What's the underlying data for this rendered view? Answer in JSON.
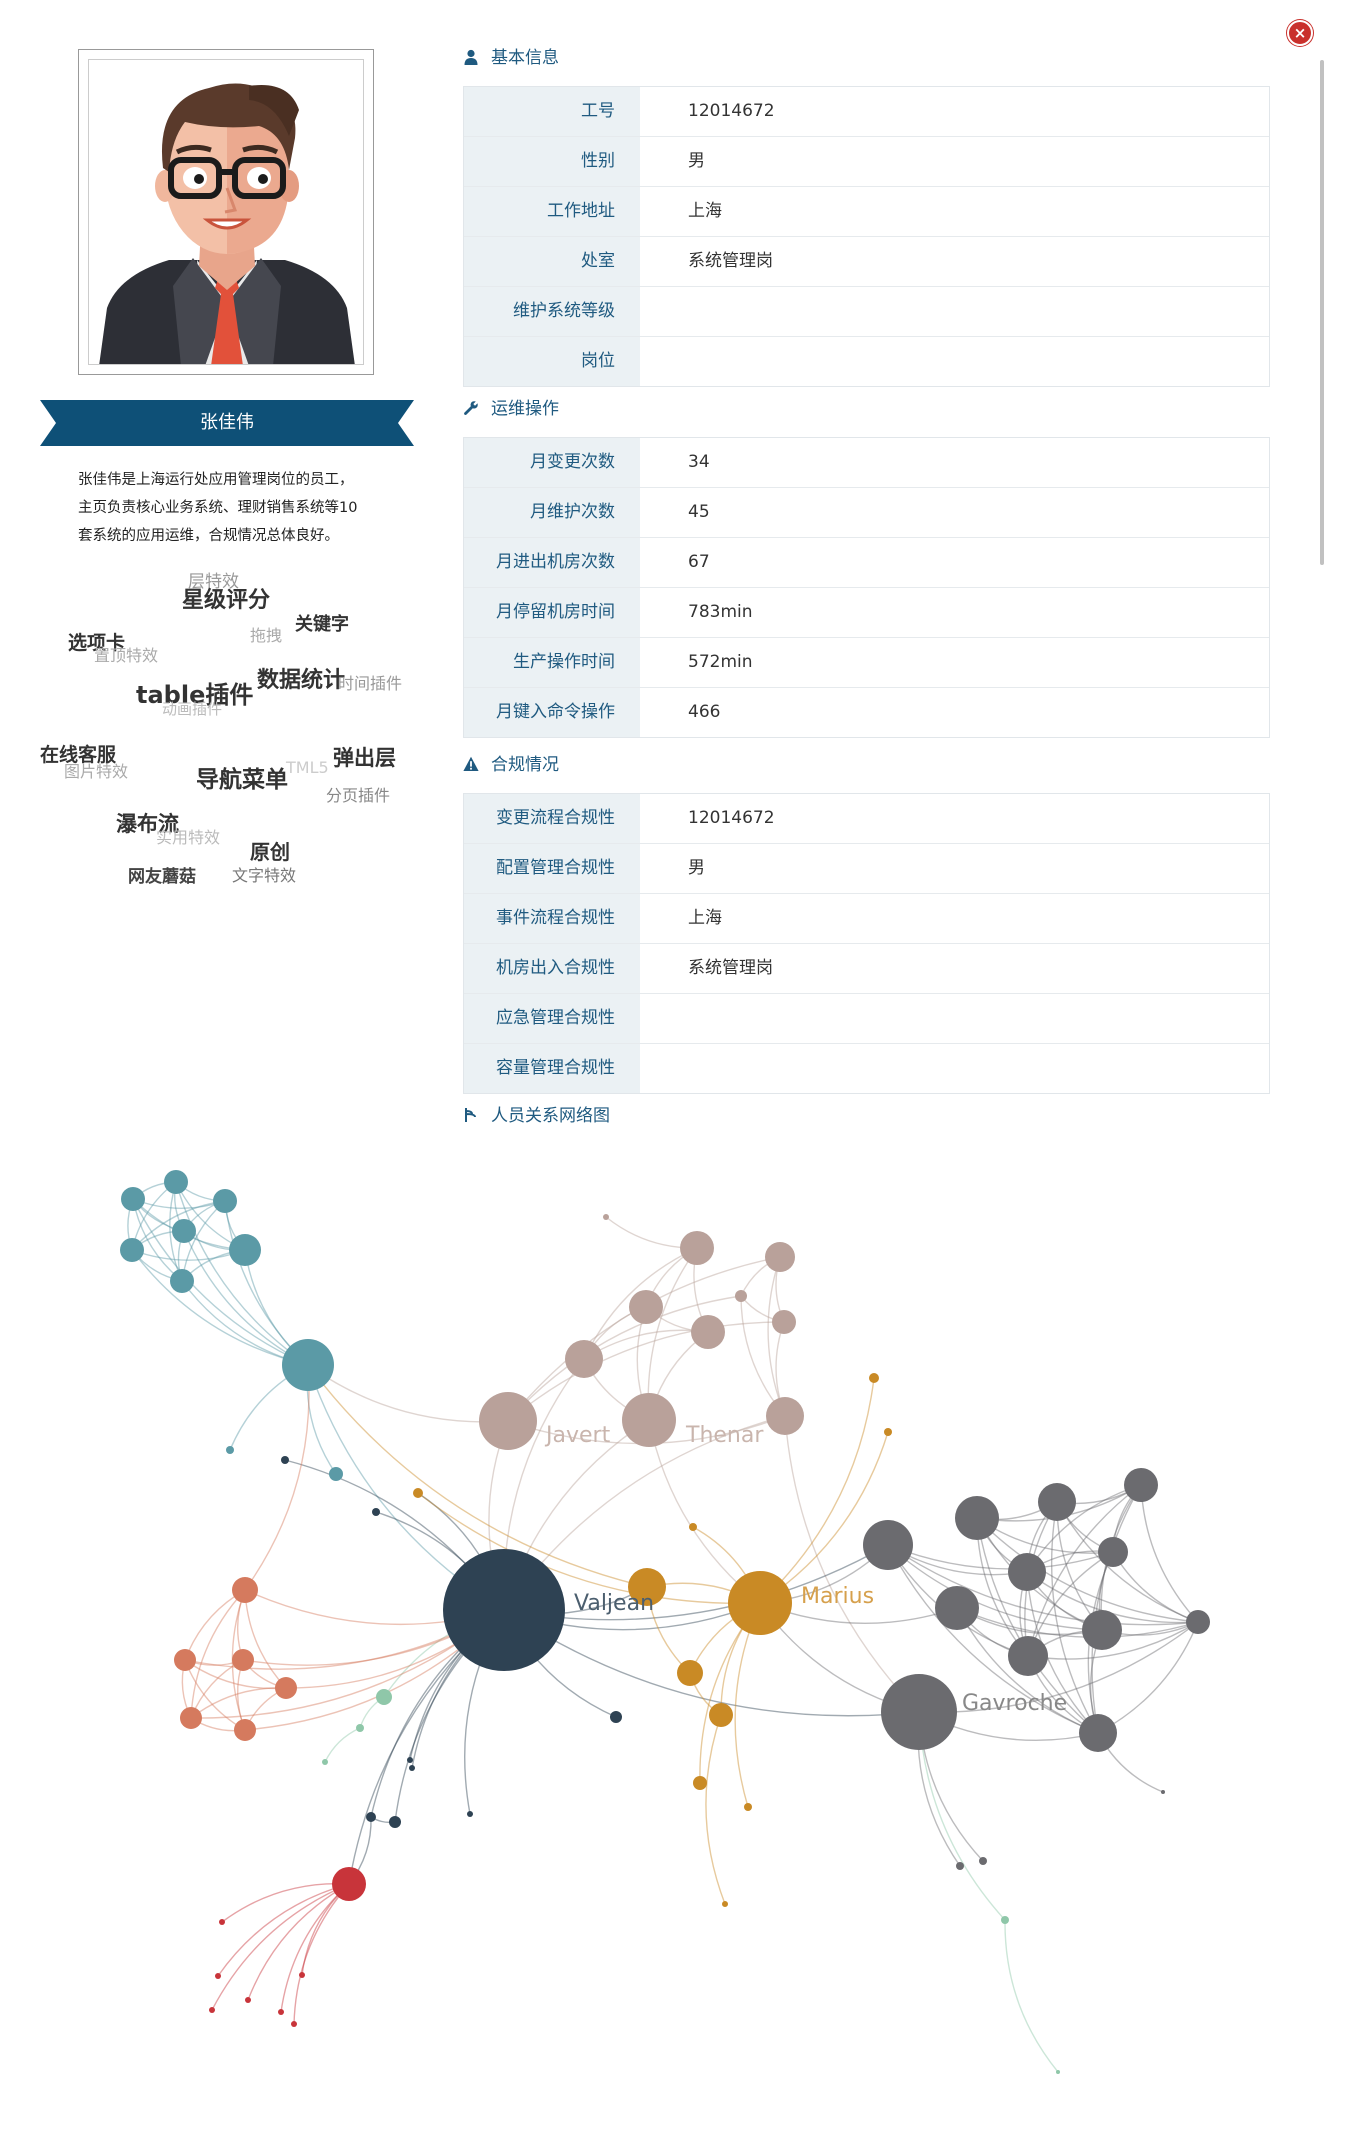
{
  "close_label": "×",
  "profile": {
    "name": "张佳伟",
    "bio_lines": [
      "张佳伟是上海运行处应用管理岗位的员工，",
      "主页负责核心业务系统、理财销售系统等10",
      "套系统的应用运维，合规情况总体良好。"
    ]
  },
  "word_cloud": [
    {
      "text": "层特效",
      "color": "#999999"
    },
    {
      "text": "星级评分",
      "color": "#111111"
    },
    {
      "text": "关键字",
      "color": "#111111"
    },
    {
      "text": "拖拽",
      "color": "#aaaaaa"
    },
    {
      "text": "选项卡",
      "color": "#111111"
    },
    {
      "text": "置顶特效",
      "color": "#aaaaaa"
    },
    {
      "text": "数据统计",
      "color": "#111111"
    },
    {
      "text": "时间插件",
      "color": "#999999"
    },
    {
      "text": "table插件",
      "color": "#111111"
    },
    {
      "text": "动画插件",
      "color": "#bbbbbb"
    },
    {
      "text": "在线客服",
      "color": "#111111"
    },
    {
      "text": "图片特效",
      "color": "#aaaaaa"
    },
    {
      "text": "导航菜单",
      "color": "#111111"
    },
    {
      "text": "TML5",
      "color": "#cccccc"
    },
    {
      "text": "弹出层",
      "color": "#111111"
    },
    {
      "text": "分页插件",
      "color": "#888888"
    },
    {
      "text": "瀑布流",
      "color": "#111111"
    },
    {
      "text": "实用特效",
      "color": "#bbbbbb"
    },
    {
      "text": "原创",
      "color": "#111111"
    },
    {
      "text": "网友蘑菇",
      "color": "#444444"
    },
    {
      "text": "文字特效",
      "color": "#777777"
    }
  ],
  "sections": {
    "basic": {
      "title": "基本信息",
      "icon": "user-icon",
      "rows": [
        {
          "label": "工号",
          "value": "12014672"
        },
        {
          "label": "性别",
          "value": "男"
        },
        {
          "label": "工作地址",
          "value": "上海"
        },
        {
          "label": "处室",
          "value": "系统管理岗"
        },
        {
          "label": "维护系统等级",
          "value": ""
        },
        {
          "label": "岗位",
          "value": ""
        }
      ]
    },
    "ops": {
      "title": "运维操作",
      "icon": "wrench-icon",
      "rows": [
        {
          "label": "月变更次数",
          "value": "34"
        },
        {
          "label": "月维护次数",
          "value": "45"
        },
        {
          "label": "月进出机房次数",
          "value": "67"
        },
        {
          "label": "月停留机房时间",
          "value": "783min"
        },
        {
          "label": "生产操作时间",
          "value": "572min"
        },
        {
          "label": "月键入命令操作",
          "value": "466"
        }
      ]
    },
    "compliance": {
      "title": "合规情况",
      "icon": "warning-icon",
      "rows": [
        {
          "label": "变更流程合规性",
          "value": "12014672"
        },
        {
          "label": "配置管理合规性",
          "value": "男"
        },
        {
          "label": "事件流程合规性",
          "value": "上海"
        },
        {
          "label": "机房出入合规性",
          "value": "系统管理岗"
        },
        {
          "label": "应急管理合规性",
          "value": ""
        },
        {
          "label": "容量管理合规性",
          "value": ""
        }
      ]
    },
    "network": {
      "title": "人员关系网络图",
      "icon": "network-icon"
    }
  },
  "graph": {
    "labels": {
      "valjean": "Valjean",
      "javert": "Javert",
      "thenardier": "Thenar",
      "marius": "Marius",
      "gavroche": "Gavroche"
    },
    "colors": {
      "teal": "#5b9aa6",
      "rose": "#b9a19a",
      "navy": "#2e4253",
      "orange": "#c98a25",
      "gray": "#6b6b6f",
      "salmon": "#d57a5e",
      "red": "#c8343a",
      "mint": "#8fc7a9",
      "banner": "#0e5077",
      "accent": "#1f5a80"
    }
  }
}
